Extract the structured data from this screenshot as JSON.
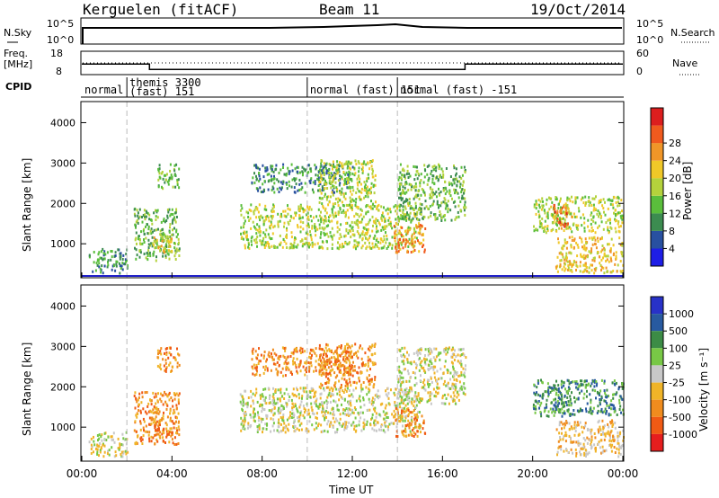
{
  "header": {
    "station": "Kerguelen (fitACF)",
    "beam": "Beam 11",
    "date": "19/Oct/2014"
  },
  "strip": {
    "nsky_label": "N.Sky",
    "nsky_ticks": [
      "10^5",
      "10^0"
    ],
    "nsearch_label": "N.Search",
    "freq_label_1": "Freq.",
    "freq_label_2": "[MHz]",
    "freq_ticks": [
      "18",
      "8"
    ],
    "nave_ticks": [
      "60",
      "0"
    ],
    "nave_label": "Nave",
    "cpid_label": "CPID"
  },
  "cpid_modes": [
    {
      "label": "normal",
      "start_hour": 0.0,
      "end_hour": 2.0
    },
    {
      "label": "themis 3300",
      "label2": "(fast) 151",
      "start_hour": 2.0,
      "end_hour": 10.0
    },
    {
      "label": "normal (fast) 151",
      "start_hour": 10.0,
      "end_hour": 14.0
    },
    {
      "label": "normal (fast) -151",
      "start_hour": 14.0,
      "end_hour": 24.0
    }
  ],
  "freq_profile": [
    [
      0,
      12.5
    ],
    [
      3,
      12.5
    ],
    [
      3,
      10.2
    ],
    [
      17,
      10.2
    ],
    [
      17,
      12.5
    ],
    [
      24,
      12.5
    ]
  ],
  "power_panel": {
    "ylabel": "Slant Range [km]",
    "yticks": [
      "1000",
      "2000",
      "3000",
      "4000"
    ],
    "colorbar_label": "Power [dB]",
    "colorbar_ticks": [
      "4",
      "8",
      "12",
      "16",
      "20",
      "24",
      "28"
    ],
    "colors": [
      "#1e1ee6",
      "#2850a0",
      "#3c8c50",
      "#5abe3c",
      "#b4d23c",
      "#f0c828",
      "#f09628",
      "#f05a1e",
      "#dc1e1e"
    ]
  },
  "velocity_panel": {
    "ylabel": "Slant Range [km]",
    "yticks": [
      "1000",
      "2000",
      "3000",
      "4000"
    ],
    "colorbar_label": "Velocity [m s⁻¹]",
    "colorbar_ticks": [
      "1000",
      "500",
      "100",
      "25",
      "-25",
      "-100",
      "-500",
      "-1000"
    ],
    "colors": [
      "#2832c8",
      "#285aa0",
      "#3c8c46",
      "#78c846",
      "#c8c8c8",
      "#f0b428",
      "#f08c1e",
      "#f05a14",
      "#e61e1e"
    ]
  },
  "xaxis": {
    "ticks": [
      "00:00",
      "04:00",
      "08:00",
      "12:00",
      "16:00",
      "20:00",
      "00:00"
    ],
    "label": "Time UT"
  },
  "chart_data": {
    "type": "heatmap",
    "x_unit": "hour UT",
    "y_unit": "km",
    "xlim": [
      0,
      24
    ],
    "ylim": [
      180,
      4500
    ],
    "power_regions": [
      {
        "t0": 0.3,
        "t1": 2.0,
        "r0": 300,
        "r1": 900,
        "power_db": 6
      },
      {
        "t0": 2.3,
        "t1": 4.3,
        "r0": 600,
        "r1": 1900,
        "power_db": 12
      },
      {
        "t0": 3.3,
        "t1": 4.3,
        "r0": 2400,
        "r1": 3000,
        "power_db": 12
      },
      {
        "t0": 3.1,
        "t1": 4.0,
        "r0": 800,
        "r1": 1300,
        "power_db": 18
      },
      {
        "t0": 7.0,
        "t1": 15.0,
        "r0": 900,
        "r1": 2000,
        "power_db": 16
      },
      {
        "t0": 7.5,
        "t1": 12.0,
        "r0": 2300,
        "r1": 3000,
        "power_db": 8
      },
      {
        "t0": 10.5,
        "t1": 13.0,
        "r0": 2000,
        "r1": 3100,
        "power_db": 14
      },
      {
        "t0": 13.8,
        "t1": 15.2,
        "r0": 800,
        "r1": 1500,
        "power_db": 24
      },
      {
        "t0": 14.0,
        "t1": 17.0,
        "r0": 1600,
        "r1": 3000,
        "power_db": 10
      },
      {
        "t0": 20.0,
        "t1": 24.0,
        "r0": 1300,
        "r1": 2200,
        "power_db": 14
      },
      {
        "t0": 20.9,
        "t1": 21.7,
        "r0": 1400,
        "r1": 2000,
        "power_db": 28
      },
      {
        "t0": 21.0,
        "t1": 24.0,
        "r0": 300,
        "r1": 1200,
        "power_db": 20
      }
    ],
    "velocity_regions": [
      {
        "t0": 0.3,
        "t1": 2.0,
        "r0": 300,
        "r1": 900,
        "velocity": 0
      },
      {
        "t0": 2.3,
        "t1": 4.3,
        "r0": 600,
        "r1": 1900,
        "velocity": -300
      },
      {
        "t0": 3.3,
        "t1": 4.3,
        "r0": 2400,
        "r1": 3000,
        "velocity": -500
      },
      {
        "t0": 3.1,
        "t1": 4.0,
        "r0": 800,
        "r1": 1300,
        "velocity": -200
      },
      {
        "t0": 7.0,
        "t1": 15.0,
        "r0": 900,
        "r1": 2000,
        "velocity": 0
      },
      {
        "t0": 7.5,
        "t1": 12.0,
        "r0": 2300,
        "r1": 3000,
        "velocity": -400
      },
      {
        "t0": 10.5,
        "t1": 13.0,
        "r0": 2000,
        "r1": 3100,
        "velocity": -200
      },
      {
        "t0": 13.8,
        "t1": 15.2,
        "r0": 800,
        "r1": 1500,
        "velocity": -300
      },
      {
        "t0": 14.0,
        "t1": 17.0,
        "r0": 1600,
        "r1": 3000,
        "velocity": 0
      },
      {
        "t0": 20.0,
        "t1": 24.0,
        "r0": 1300,
        "r1": 2200,
        "velocity": 150
      },
      {
        "t0": 20.9,
        "t1": 21.7,
        "r0": 1400,
        "r1": 2000,
        "velocity": 300
      },
      {
        "t0": 21.0,
        "t1": 24.0,
        "r0": 300,
        "r1": 1200,
        "velocity": -80
      }
    ]
  }
}
